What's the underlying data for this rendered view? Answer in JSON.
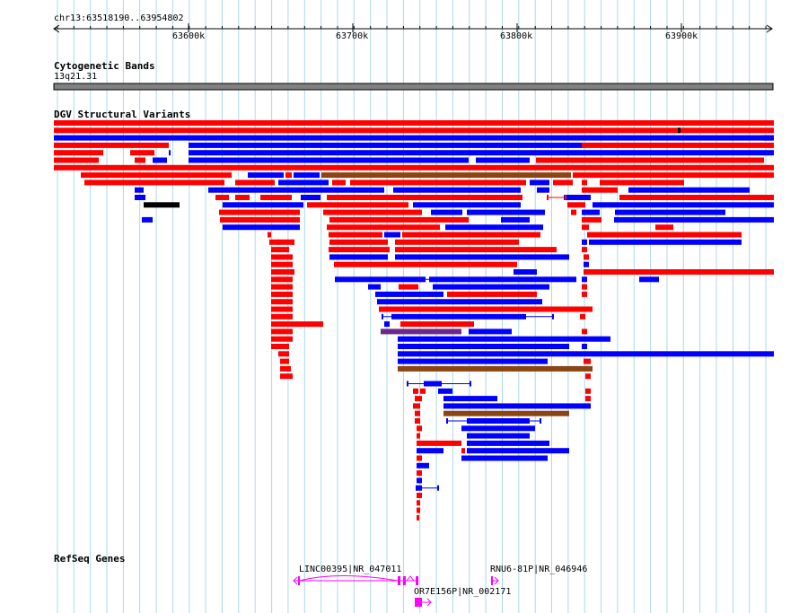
{
  "ruler": {
    "range_label": "chr13:63518190..63954802",
    "ticks": [
      "63600k",
      "63700k",
      "63800k",
      "63900k"
    ]
  },
  "cytoband": {
    "title": "Cytogenetic Bands",
    "band_label": "13q21.31"
  },
  "dgv": {
    "title": "DGV Structural Variants"
  },
  "refseq": {
    "title": "RefSeq Genes",
    "genes": [
      {
        "label": "LINC00395|NR_047011"
      },
      {
        "label": "RNU6-81P|NR_046946"
      },
      {
        "label": "OR7E156P|NR_002171"
      }
    ]
  },
  "colors": {
    "gain": "#ff0000",
    "loss": "#0000ff",
    "complex": "#8b4513",
    "inversion": "#6a2a8a",
    "other": "#000000",
    "gene": "#ff00ff",
    "grid": "#add8e6",
    "band": "#808080"
  }
}
